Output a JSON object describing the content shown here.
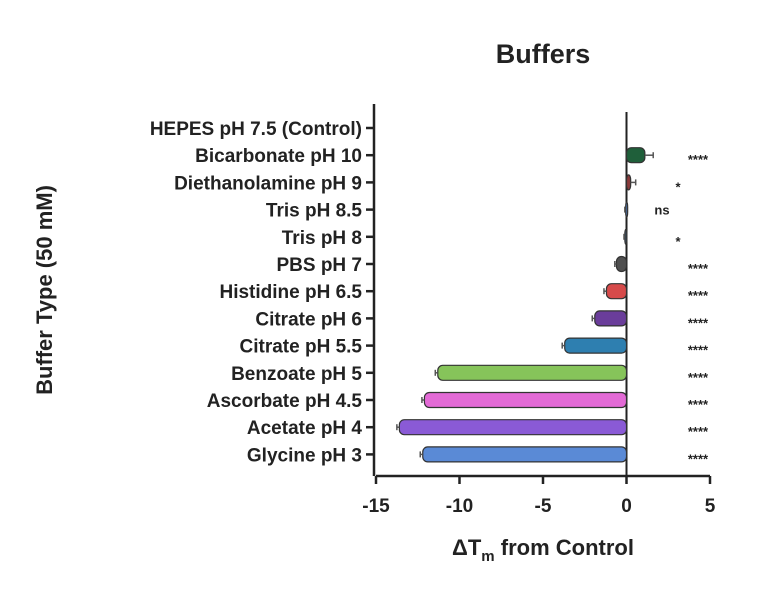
{
  "chart_data": {
    "type": "bar",
    "orientation": "horizontal",
    "title": "Buffers",
    "xlabel_main": "ΔT",
    "xlabel_sub": "m",
    "xlabel_rest": " from Control",
    "ylabel": "Buffer Type (50 mM)",
    "xlim": [
      -15,
      5
    ],
    "xticks": [
      "-15",
      "-10",
      "-5",
      "0",
      "5"
    ],
    "xtick_values": [
      -15,
      -10,
      -5,
      0,
      5
    ],
    "grid": false,
    "legend": "none",
    "categories": [
      "HEPES pH 7.5 (Control)",
      "Bicarbonate pH 10",
      "Diethanolamine pH 9",
      "Tris pH 8.5",
      "Tris pH 8",
      "PBS pH 7",
      "Histidine pH 6.5",
      "Citrate pH 6",
      "Citrate pH 5.5",
      "Benzoate pH 5",
      "Ascorbate pH 4.5",
      "Acetate pH 4",
      "Glycine pH 3"
    ],
    "values": [
      0,
      1.1,
      0.25,
      -0.05,
      -0.1,
      -0.6,
      -1.2,
      -1.9,
      -3.7,
      -11.3,
      -12.1,
      -13.6,
      -12.2
    ],
    "errors": [
      0,
      0.5,
      0.3,
      0.05,
      0.05,
      0.1,
      0.15,
      0.15,
      0.15,
      0.15,
      0.15,
      0.15,
      0.15
    ],
    "significance": [
      "",
      "****",
      "*",
      "ns",
      "*",
      "****",
      "****",
      "****",
      "****",
      "****",
      "****",
      "****",
      "****"
    ],
    "colors": [
      "#ffffff",
      "#1f5f3a",
      "#8a3a3a",
      "#4a6fa5",
      "#3d4f63",
      "#4f4f4f",
      "#d64a4a",
      "#6a3d9a",
      "#2e7fb0",
      "#86c45a",
      "#e36ad6",
      "#8a5ad6",
      "#5a8ad6"
    ]
  }
}
